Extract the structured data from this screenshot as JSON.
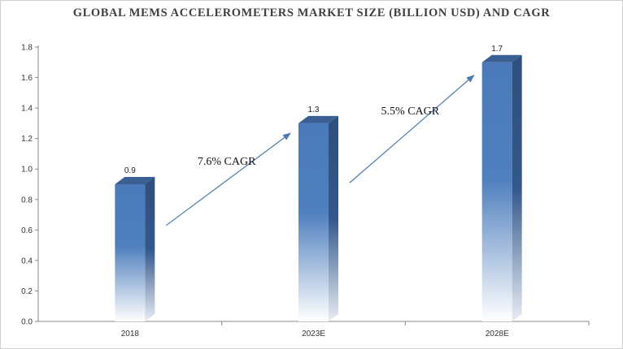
{
  "chart_data": {
    "type": "bar",
    "title": "GLOBAL MEMS ACCELEROMETERS MARKET SIZE (BILLION USD) AND CAGR",
    "categories": [
      "2018",
      "2023E",
      "2028E"
    ],
    "values": [
      0.9,
      1.3,
      1.7
    ],
    "data_labels": [
      "0.9",
      "1.3",
      "1.7"
    ],
    "ylim": [
      0,
      1.8
    ],
    "yticks": [
      "0.0",
      "0.2",
      "0.4",
      "0.6",
      "0.8",
      "1.0",
      "1.2",
      "1.4",
      "1.6",
      "1.8"
    ],
    "grid": false,
    "annotations": [
      {
        "text": "7.6% CAGR",
        "from_category": "2018",
        "to_category": "2023E"
      },
      {
        "text": "5.5% CAGR",
        "from_category": "2023E",
        "to_category": "2028E"
      }
    ]
  },
  "colors": {
    "bar_front": "#4a7ab9",
    "bar_side": "#2e4f7d",
    "bar_top": "#3a5f92",
    "arrow": "#4a7ab9",
    "axis": "#888888"
  }
}
